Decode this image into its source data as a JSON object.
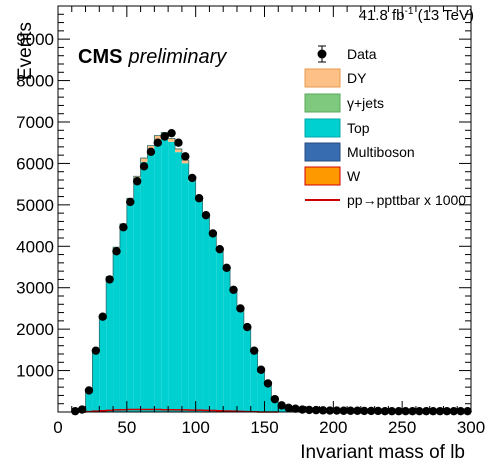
{
  "chart_data": {
    "type": "bar",
    "lumi_text": "41.8 fb",
    "lumi_sup": "-1",
    "lumi_energy": " (13 TeV)",
    "cms_bold": "CMS",
    "cms_italic": "preliminary",
    "xlabel": "Invariant mass of lb",
    "ylabel": "Events",
    "xlim": [
      0,
      300
    ],
    "ylim": [
      0,
      9800
    ],
    "x_ticks": [
      0,
      50,
      100,
      150,
      200,
      250,
      300
    ],
    "y_ticks": [
      1000,
      2000,
      3000,
      4000,
      5000,
      6000,
      7000,
      8000,
      9000
    ],
    "bin_width": 5,
    "bin_edges_start": 10,
    "legend": [
      {
        "label": "Data",
        "kind": "marker",
        "color": "#000000"
      },
      {
        "label": "DY",
        "kind": "fill",
        "color": "#fdc086",
        "edge": "#e89a50"
      },
      {
        "label": "γ+jets",
        "kind": "fill",
        "color": "#7fc97f",
        "edge": "#5aa85a"
      },
      {
        "label": "Top",
        "kind": "fill",
        "color": "#00d0d0",
        "edge": "#00a8a8"
      },
      {
        "label": "Multiboson",
        "kind": "fill",
        "color": "#386cb0",
        "edge": "#244c80"
      },
      {
        "label": "W",
        "kind": "fill",
        "color": "#ff9900",
        "edge": "#d00000"
      },
      {
        "label": "pp→ppttbar x 1000",
        "kind": "line",
        "color": "#cc0000"
      }
    ],
    "top_values": [
      20,
      60,
      480,
      1450,
      2280,
      3190,
      3880,
      4430,
      5050,
      5580,
      6030,
      6330,
      6580,
      6660,
      6520,
      6270,
      6000,
      5570,
      5100,
      4680,
      4280,
      3880,
      3470,
      2930,
      2480,
      2030,
      1480,
      1020,
      700,
      330,
      170,
      100,
      80,
      65,
      55,
      45,
      40,
      35,
      30,
      28,
      25,
      25,
      22,
      20,
      20,
      18,
      18,
      16,
      16,
      15,
      15,
      14,
      14,
      13,
      13,
      12,
      12,
      12
    ],
    "other_values": [
      0,
      5,
      20,
      50,
      60,
      80,
      100,
      110,
      110,
      110,
      100,
      100,
      95,
      90,
      85,
      80,
      80,
      70,
      65,
      60,
      55,
      50,
      45,
      40,
      35,
      30,
      25,
      20,
      15,
      10,
      8,
      6,
      5,
      4,
      4,
      3,
      3,
      3,
      2,
      2,
      2,
      2,
      2,
      2,
      2,
      2,
      2,
      2,
      2,
      2,
      2,
      2,
      2,
      2,
      2,
      2,
      2,
      2
    ],
    "data_points": {
      "x": [
        12.5,
        17.5,
        22.5,
        27.5,
        32.5,
        37.5,
        42.5,
        47.5,
        52.5,
        57.5,
        62.5,
        67.5,
        72.5,
        77.5,
        82.5,
        87.5,
        92.5,
        97.5,
        102.5,
        107.5,
        112.5,
        117.5,
        122.5,
        127.5,
        132.5,
        137.5,
        142.5,
        147.5,
        152.5,
        157.5,
        162.5,
        167.5,
        172.5,
        177.5,
        182.5,
        187.5,
        192.5,
        197.5,
        202.5,
        207.5,
        212.5,
        217.5,
        222.5,
        227.5,
        232.5,
        237.5,
        242.5,
        247.5,
        252.5,
        257.5,
        262.5,
        267.5,
        272.5,
        277.5,
        282.5,
        287.5,
        292.5,
        297.5
      ],
      "y": [
        20,
        60,
        520,
        1480,
        2300,
        3200,
        3880,
        4460,
        5070,
        5570,
        5930,
        6280,
        6500,
        6650,
        6730,
        6500,
        6170,
        5650,
        5160,
        4750,
        4310,
        3930,
        3480,
        2950,
        2500,
        2050,
        1480,
        1020,
        690,
        310,
        160,
        100,
        80,
        60,
        50,
        45,
        40,
        35,
        35,
        30,
        30,
        30,
        25,
        25,
        25,
        20,
        20,
        20,
        20,
        20,
        20,
        20,
        20,
        20,
        20,
        20,
        20,
        20
      ]
    },
    "signal_values": [
      0,
      0,
      10,
      20,
      30,
      40,
      50,
      55,
      60,
      60,
      60,
      60,
      60,
      55,
      55,
      50,
      50,
      45,
      45,
      40,
      35,
      30,
      25,
      20,
      15,
      10,
      5,
      0,
      0,
      0
    ]
  }
}
